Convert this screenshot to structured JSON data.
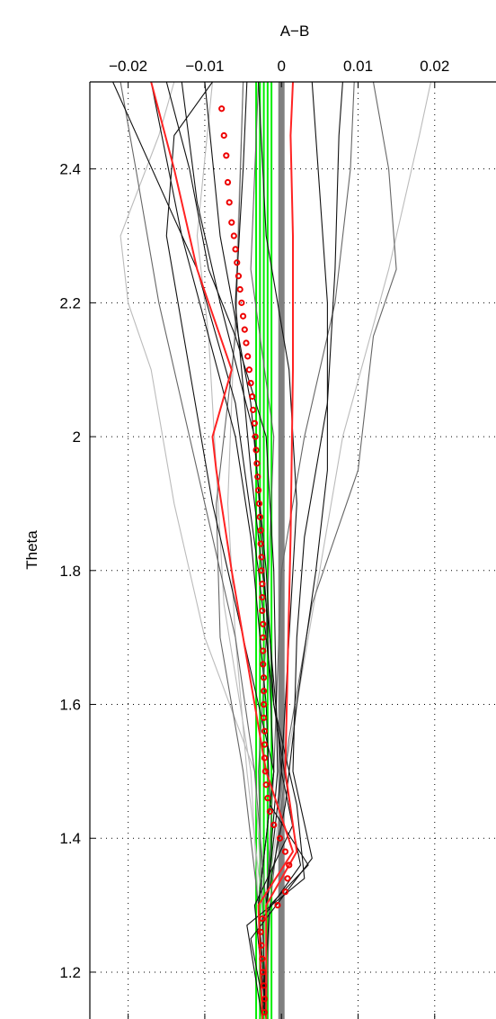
{
  "chart_data": {
    "type": "line",
    "title": "",
    "xlabel": "A−B",
    "ylabel": "Theta",
    "xlim": [
      -0.025,
      0.028
    ],
    "ylim": [
      1.13,
      2.53
    ],
    "x_axis_position": "top",
    "grid": true,
    "x_ticks": [
      -0.02,
      -0.01,
      0,
      0.01,
      0.02
    ],
    "x_tick_labels": [
      "−0.02",
      "−0.01",
      "0",
      "0.01",
      "0.02"
    ],
    "y_ticks": [
      1.2,
      1.4,
      1.6,
      1.8,
      2.0,
      2.2,
      2.4
    ],
    "y_tick_labels": [
      "1.2",
      "1.4",
      "1.6",
      "1.8",
      "2",
      "2.2",
      "2.4"
    ],
    "colors": {
      "zero_line": "#808080",
      "green": "#00ee00",
      "red": "#ff2222",
      "marker": "#ee0000",
      "black": "#111111",
      "dark_gray": "#666666",
      "light_gray": "#bbbbbb"
    },
    "series": [
      {
        "color": "#808080",
        "kind": "vertical",
        "x": 0,
        "width": 7
      },
      {
        "color": "#00ee00",
        "kind": "vertical",
        "x": -0.0033,
        "width": 2
      },
      {
        "color": "#00ee00",
        "kind": "vertical",
        "x": -0.0028,
        "width": 2
      },
      {
        "color": "#00ee00",
        "kind": "vertical",
        "x": -0.0023,
        "width": 2
      },
      {
        "color": "#00ee00",
        "kind": "vertical",
        "x": -0.0018,
        "width": 2
      },
      {
        "color": "#00ee00",
        "kind": "vertical",
        "x": -0.0013,
        "width": 2
      },
      {
        "color": "#bbbbbb",
        "points": [
          [
            -0.002,
            1.13
          ],
          [
            -0.0025,
            1.3
          ],
          [
            -0.0035,
            1.5
          ],
          [
            -0.01,
            1.7
          ],
          [
            -0.014,
            1.9
          ],
          [
            -0.017,
            2.1
          ],
          [
            -0.02,
            2.2
          ],
          [
            -0.021,
            2.3
          ],
          [
            -0.016,
            2.45
          ],
          [
            -0.014,
            2.53
          ]
        ]
      },
      {
        "color": "#bbbbbb",
        "points": [
          [
            -0.002,
            1.13
          ],
          [
            -0.003,
            1.3
          ],
          [
            -0.004,
            1.5
          ],
          [
            -0.0075,
            1.75
          ],
          [
            -0.0085,
            1.95
          ],
          [
            -0.0095,
            2.15
          ],
          [
            -0.011,
            2.3
          ],
          [
            -0.009,
            2.53
          ]
        ]
      },
      {
        "color": "#bbbbbb",
        "points": [
          [
            -0.002,
            1.13
          ],
          [
            -0.002,
            1.3
          ],
          [
            0.0005,
            1.5
          ],
          [
            0.005,
            1.8
          ],
          [
            0.008,
            2.0
          ],
          [
            0.014,
            2.25
          ],
          [
            0.018,
            2.45
          ],
          [
            0.0195,
            2.53
          ]
        ]
      },
      {
        "color": "#bbbbbb",
        "points": [
          [
            -0.002,
            1.13
          ],
          [
            -0.0025,
            1.3
          ],
          [
            -0.0045,
            1.5
          ],
          [
            -0.006,
            1.7
          ],
          [
            -0.007,
            1.9
          ],
          [
            -0.006,
            2.2
          ],
          [
            -0.005,
            2.53
          ]
        ]
      },
      {
        "color": "#666666",
        "points": [
          [
            -0.002,
            1.13
          ],
          [
            -0.002,
            1.3
          ],
          [
            -0.0035,
            1.5
          ],
          [
            -0.006,
            1.7
          ],
          [
            -0.011,
            1.95
          ],
          [
            -0.016,
            2.2
          ],
          [
            -0.019,
            2.4
          ],
          [
            -0.021,
            2.53
          ]
        ]
      },
      {
        "color": "#666666",
        "points": [
          [
            -0.002,
            1.13
          ],
          [
            -0.0015,
            1.3
          ],
          [
            0.001,
            1.55
          ],
          [
            0.004,
            1.75
          ],
          [
            0.01,
            1.95
          ],
          [
            0.012,
            2.15
          ],
          [
            0.015,
            2.25
          ],
          [
            0.014,
            2.4
          ],
          [
            0.012,
            2.53
          ]
        ]
      },
      {
        "color": "#666666",
        "points": [
          [
            -0.002,
            1.13
          ],
          [
            -0.002,
            1.3
          ],
          [
            -0.001,
            1.5
          ],
          [
            0.0,
            1.8
          ],
          [
            0.003,
            2.0
          ],
          [
            0.007,
            2.2
          ],
          [
            0.009,
            2.4
          ],
          [
            0.0095,
            2.53
          ]
        ]
      },
      {
        "color": "#666666",
        "points": [
          [
            -0.002,
            1.13
          ],
          [
            -0.0025,
            1.3
          ],
          [
            -0.003,
            1.5
          ],
          [
            -0.002,
            1.7
          ],
          [
            -0.001,
            2.0
          ],
          [
            -0.004,
            2.25
          ],
          [
            -0.003,
            2.53
          ]
        ]
      },
      {
        "color": "#666666",
        "points": [
          [
            -0.002,
            1.13
          ],
          [
            -0.003,
            1.3
          ],
          [
            -0.005,
            1.5
          ],
          [
            -0.008,
            1.7
          ],
          [
            -0.0085,
            1.9
          ],
          [
            -0.006,
            2.15
          ],
          [
            -0.005,
            2.53
          ]
        ]
      },
      {
        "color": "#111111",
        "points": [
          [
            -0.0025,
            1.13
          ],
          [
            -0.0015,
            1.3
          ],
          [
            0.0035,
            1.36
          ],
          [
            -0.0015,
            1.45
          ],
          [
            -0.002,
            1.6
          ],
          [
            -0.004,
            1.85
          ],
          [
            -0.006,
            2.0
          ],
          [
            -0.013,
            2.3
          ],
          [
            -0.017,
            2.53
          ]
        ]
      },
      {
        "color": "#111111",
        "points": [
          [
            -0.0025,
            1.13
          ],
          [
            -0.0045,
            1.27
          ],
          [
            0.003,
            1.34
          ],
          [
            0.002,
            1.45
          ],
          [
            -0.001,
            1.6
          ],
          [
            -0.002,
            1.8
          ],
          [
            -0.004,
            2.05
          ],
          [
            -0.008,
            2.3
          ],
          [
            -0.01,
            2.53
          ]
        ]
      },
      {
        "color": "#111111",
        "points": [
          [
            -0.002,
            1.13
          ],
          [
            -0.004,
            1.25
          ],
          [
            0.004,
            1.37
          ],
          [
            0.0015,
            1.5
          ],
          [
            0.002,
            1.7
          ],
          [
            0.003,
            1.85
          ],
          [
            0.006,
            2.05
          ],
          [
            0.007,
            2.25
          ],
          [
            0.0075,
            2.45
          ],
          [
            0.008,
            2.53
          ]
        ]
      },
      {
        "color": "#111111",
        "points": [
          [
            -0.002,
            1.13
          ],
          [
            -0.003,
            1.3
          ],
          [
            -0.001,
            1.5
          ],
          [
            -0.005,
            1.7
          ],
          [
            -0.009,
            1.9
          ],
          [
            -0.012,
            2.1
          ],
          [
            -0.015,
            2.3
          ],
          [
            -0.014,
            2.45
          ],
          [
            -0.009,
            2.53
          ]
        ]
      },
      {
        "color": "#111111",
        "points": [
          [
            -0.002,
            1.13
          ],
          [
            -0.002,
            1.3
          ],
          [
            0.0005,
            1.45
          ],
          [
            0.002,
            1.6
          ],
          [
            0.0045,
            1.8
          ],
          [
            0.006,
            1.95
          ],
          [
            0.006,
            2.2
          ],
          [
            0.004,
            2.53
          ]
        ]
      },
      {
        "color": "#111111",
        "points": [
          [
            -0.002,
            1.13
          ],
          [
            -0.0035,
            1.3
          ],
          [
            0.0015,
            1.42
          ],
          [
            -0.001,
            1.6
          ],
          [
            -0.003,
            1.8
          ],
          [
            -0.006,
            2.05
          ],
          [
            -0.011,
            2.25
          ],
          [
            -0.022,
            2.53
          ]
        ]
      },
      {
        "color": "#111111",
        "points": [
          [
            -0.002,
            1.13
          ],
          [
            -0.0025,
            1.28
          ],
          [
            0.0025,
            1.36
          ],
          [
            0.0,
            1.5
          ],
          [
            -0.0015,
            1.7
          ],
          [
            -0.004,
            1.95
          ],
          [
            -0.006,
            2.2
          ],
          [
            -0.005,
            2.4
          ],
          [
            -0.0045,
            2.53
          ]
        ]
      },
      {
        "color": "#111111",
        "points": [
          [
            -0.002,
            1.13
          ],
          [
            -0.003,
            1.3
          ],
          [
            -0.001,
            1.5
          ],
          [
            -0.002,
            1.75
          ],
          [
            -0.0035,
            2.0
          ],
          [
            -0.008,
            2.2
          ],
          [
            -0.011,
            2.35
          ],
          [
            -0.013,
            2.53
          ]
        ]
      },
      {
        "color": "#111111",
        "points": [
          [
            -0.002,
            1.13
          ],
          [
            -0.002,
            1.3
          ],
          [
            -0.0005,
            1.5
          ],
          [
            -0.001,
            1.8
          ],
          [
            -0.002,
            2.0
          ],
          [
            -0.006,
            2.15
          ],
          [
            -0.0095,
            2.25
          ],
          [
            -0.012,
            2.4
          ],
          [
            -0.015,
            2.53
          ]
        ]
      },
      {
        "color": "#111111",
        "points": [
          [
            -0.002,
            1.13
          ],
          [
            -0.002,
            1.3
          ],
          [
            0.0,
            1.5
          ],
          [
            0.001,
            1.7
          ],
          [
            0.002,
            1.9
          ],
          [
            0.001,
            2.1
          ],
          [
            -0.002,
            2.3
          ],
          [
            -0.003,
            2.53
          ]
        ]
      },
      {
        "color": "#ff2222",
        "width": 2,
        "points": [
          [
            -0.0025,
            1.13
          ],
          [
            -0.003,
            1.3
          ],
          [
            0.0015,
            1.38
          ],
          [
            -0.002,
            1.5
          ],
          [
            -0.0035,
            1.6
          ],
          [
            -0.005,
            1.7
          ],
          [
            -0.0065,
            1.8
          ],
          [
            -0.0085,
            1.95
          ],
          [
            -0.009,
            2.0
          ],
          [
            -0.0065,
            2.1
          ],
          [
            -0.011,
            2.25
          ],
          [
            -0.014,
            2.4
          ],
          [
            -0.017,
            2.53
          ]
        ]
      },
      {
        "color": "#ff2222",
        "width": 2,
        "points": [
          [
            -0.002,
            1.13
          ],
          [
            -0.002,
            1.3
          ],
          [
            0.002,
            1.38
          ],
          [
            0.0005,
            1.5
          ],
          [
            0.0008,
            1.65
          ],
          [
            0.0012,
            1.85
          ],
          [
            0.0015,
            2.1
          ],
          [
            0.0015,
            2.3
          ],
          [
            0.0012,
            2.45
          ],
          [
            0.0015,
            2.53
          ]
        ]
      },
      {
        "color": "#ee0000",
        "kind": "markers",
        "points": [
          [
            -0.0022,
            1.14
          ],
          [
            -0.0022,
            1.16
          ],
          [
            -0.0023,
            1.18
          ],
          [
            -0.0024,
            1.2
          ],
          [
            -0.0025,
            1.22
          ],
          [
            -0.0026,
            1.24
          ],
          [
            -0.0027,
            1.26
          ],
          [
            -0.0025,
            1.28
          ],
          [
            -0.0005,
            1.3
          ],
          [
            0.0005,
            1.32
          ],
          [
            0.0008,
            1.34
          ],
          [
            0.001,
            1.36
          ],
          [
            0.0005,
            1.38
          ],
          [
            -0.0002,
            1.4
          ],
          [
            -0.001,
            1.42
          ],
          [
            -0.0015,
            1.44
          ],
          [
            -0.0018,
            1.46
          ],
          [
            -0.002,
            1.48
          ],
          [
            -0.0021,
            1.5
          ],
          [
            -0.0022,
            1.52
          ],
          [
            -0.0022,
            1.54
          ],
          [
            -0.0022,
            1.56
          ],
          [
            -0.0023,
            1.58
          ],
          [
            -0.0023,
            1.6
          ],
          [
            -0.0023,
            1.62
          ],
          [
            -0.0023,
            1.64
          ],
          [
            -0.0024,
            1.66
          ],
          [
            -0.0024,
            1.68
          ],
          [
            -0.0024,
            1.7
          ],
          [
            -0.0024,
            1.72
          ],
          [
            -0.0025,
            1.74
          ],
          [
            -0.0025,
            1.76
          ],
          [
            -0.0025,
            1.78
          ],
          [
            -0.0026,
            1.8
          ],
          [
            -0.0026,
            1.82
          ],
          [
            -0.0027,
            1.84
          ],
          [
            -0.0027,
            1.86
          ],
          [
            -0.0028,
            1.88
          ],
          [
            -0.0029,
            1.9
          ],
          [
            -0.003,
            1.92
          ],
          [
            -0.0031,
            1.94
          ],
          [
            -0.0032,
            1.96
          ],
          [
            -0.0033,
            1.98
          ],
          [
            -0.0034,
            2.0
          ],
          [
            -0.0035,
            2.02
          ],
          [
            -0.0037,
            2.04
          ],
          [
            -0.0038,
            2.06
          ],
          [
            -0.004,
            2.08
          ],
          [
            -0.0042,
            2.1
          ],
          [
            -0.0044,
            2.12
          ],
          [
            -0.0046,
            2.14
          ],
          [
            -0.0048,
            2.16
          ],
          [
            -0.005,
            2.18
          ],
          [
            -0.0052,
            2.2
          ],
          [
            -0.0054,
            2.22
          ],
          [
            -0.0056,
            2.24
          ],
          [
            -0.0058,
            2.26
          ],
          [
            -0.006,
            2.28
          ],
          [
            -0.0062,
            2.3
          ],
          [
            -0.0065,
            2.32
          ],
          [
            -0.0068,
            2.35
          ],
          [
            -0.007,
            2.38
          ],
          [
            -0.0072,
            2.42
          ],
          [
            -0.0075,
            2.45
          ],
          [
            -0.0078,
            2.49
          ]
        ]
      }
    ]
  }
}
